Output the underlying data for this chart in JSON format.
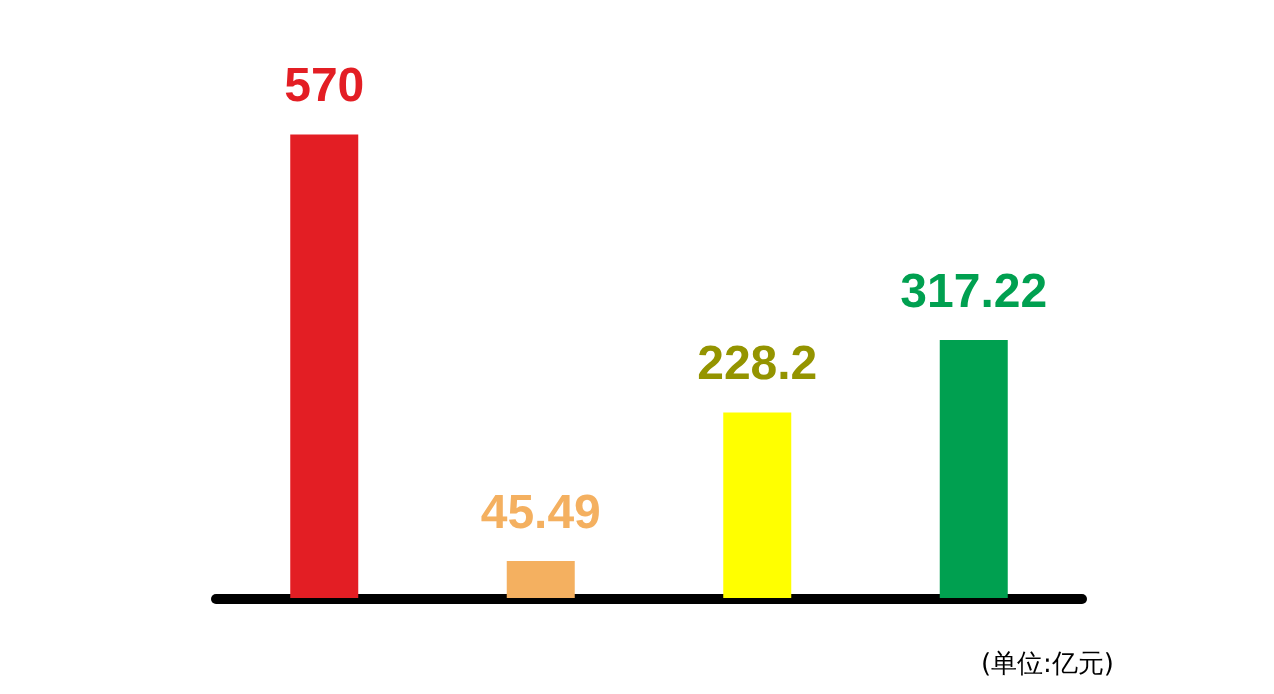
{
  "chart_data": {
    "type": "bar",
    "categories": [
      null,
      null,
      null,
      null
    ],
    "values": [
      570,
      45.49,
      228.2,
      317.22
    ],
    "colors": [
      "#e31e24",
      "#f4b060",
      "#ffff00",
      "#00a050"
    ],
    "data_labels": true,
    "annotations": [
      "(单位:亿元)"
    ]
  }
}
